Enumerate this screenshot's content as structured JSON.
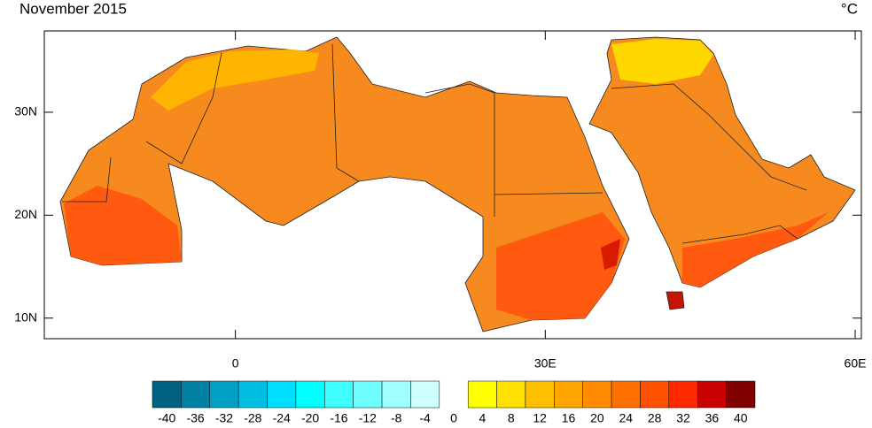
{
  "title": "November 2015",
  "units": "°C",
  "map": {
    "lon_range": [
      -18.5,
      60.6
    ],
    "lat_range": [
      8,
      37.9
    ],
    "lat_ticks": [
      {
        "value": 30,
        "label": "30N"
      },
      {
        "value": 20,
        "label": "20N"
      },
      {
        "value": 10,
        "label": "10N"
      }
    ],
    "lon_ticks": [
      0,
      {
        "value": 30,
        "label": "30E"
      },
      {
        "value": 60,
        "label": "60E"
      }
    ]
  },
  "colorbar": {
    "labels": [
      -40,
      -36,
      -32,
      -28,
      -24,
      -20,
      -16,
      -12,
      -8,
      -4,
      0,
      4,
      8,
      12,
      16,
      20,
      24,
      28,
      32,
      36,
      40
    ],
    "negative_colors": [
      "#00607f",
      "#0080a2",
      "#00a0c4",
      "#00bfe0",
      "#00dfff",
      "#00ffff",
      "#40ffff",
      "#70ffff",
      "#a0ffff",
      "#d0ffff"
    ],
    "positive_colors": [
      "#ffff00",
      "#ffe000",
      "#ffc000",
      "#ffa500",
      "#ff8c00",
      "#ff7000",
      "#ff5000",
      "#ff2800",
      "#c80000",
      "#800000"
    ]
  }
}
